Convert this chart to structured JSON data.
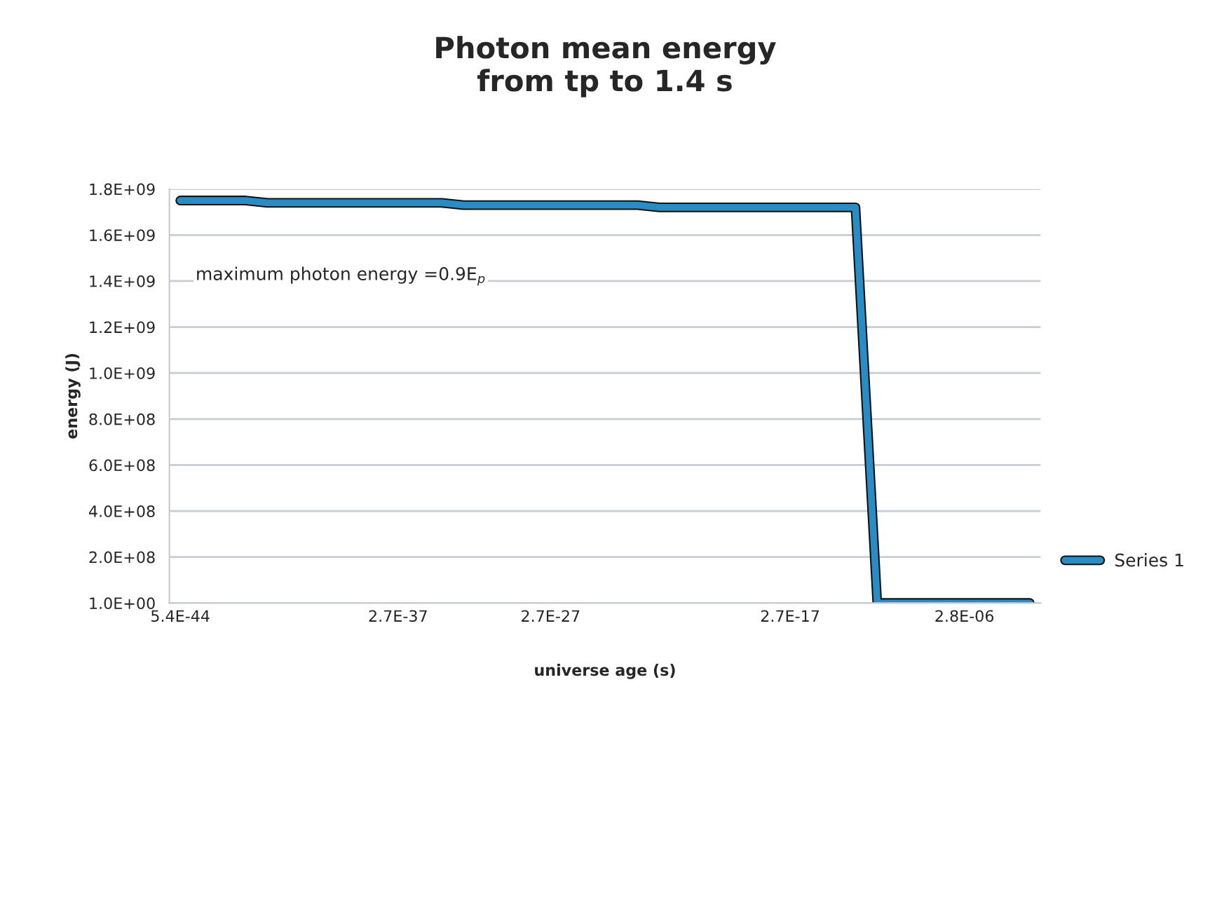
{
  "chart_data": {
    "type": "line",
    "title": "Photon mean energy\nfrom tp to 1.4 s",
    "xlabel": "universe age (s)",
    "ylabel": "energy (J)",
    "categories": [
      "5.4E-44",
      null,
      null,
      null,
      null,
      null,
      null,
      null,
      null,
      null,
      "2.7E-37",
      null,
      null,
      null,
      null,
      null,
      null,
      "2.7E-27",
      null,
      null,
      null,
      null,
      null,
      null,
      null,
      null,
      null,
      null,
      "2.7E-17",
      null,
      null,
      null,
      null,
      null,
      null,
      null,
      "2.8E-06",
      null,
      null,
      null
    ],
    "series": [
      {
        "name": "Series 1",
        "color": "#2a8cc4",
        "values": [
          1750000000.0,
          1750000000.0,
          1750000000.0,
          1750000000.0,
          1740000000.0,
          1740000000.0,
          1740000000.0,
          1740000000.0,
          1740000000.0,
          1740000000.0,
          1740000000.0,
          1740000000.0,
          1740000000.0,
          1730000000.0,
          1730000000.0,
          1730000000.0,
          1730000000.0,
          1730000000.0,
          1730000000.0,
          1730000000.0,
          1730000000.0,
          1730000000.0,
          1720000000.0,
          1720000000.0,
          1720000000.0,
          1720000000.0,
          1720000000.0,
          1720000000.0,
          1720000000.0,
          1720000000.0,
          1720000000.0,
          1720000000.0,
          1,
          1,
          1,
          1,
          1,
          1,
          1,
          1
        ]
      }
    ],
    "ylim": [
      1,
      1800000000.0
    ],
    "yticks": [
      {
        "value": 1,
        "label": "1.0E+00"
      },
      {
        "value": 200000000.0,
        "label": "2.0E+08"
      },
      {
        "value": 400000000.0,
        "label": "4.0E+08"
      },
      {
        "value": 600000000.0,
        "label": "6.0E+08"
      },
      {
        "value": 800000000.0,
        "label": "8.0E+08"
      },
      {
        "value": 1000000000.0,
        "label": "1.0E+09"
      },
      {
        "value": 1200000000.0,
        "label": "1.2E+09"
      },
      {
        "value": 1400000000.0,
        "label": "1.4E+09"
      },
      {
        "value": 1600000000.0,
        "label": "1.6E+09"
      },
      {
        "value": 1800000000.0,
        "label": "1.8E+09"
      }
    ],
    "annotations": [
      "maximum photon energy =0.9E$_{p}$"
    ],
    "grid": "y",
    "legend": "right",
    "marker": "none",
    "line_style": "solid"
  }
}
